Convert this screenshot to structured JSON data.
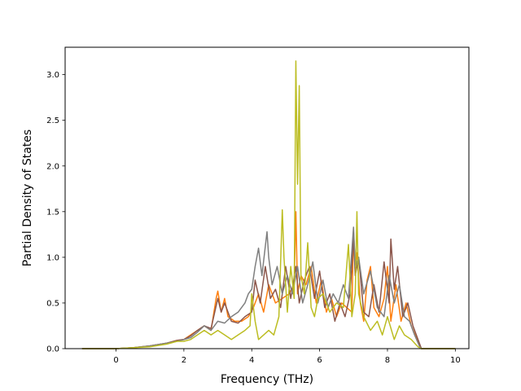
{
  "chart_data": {
    "type": "line",
    "title": "",
    "xlabel": "Frequency (THz)",
    "ylabel": "Partial Density of States",
    "xlim": [
      -1.5,
      10.4
    ],
    "ylim": [
      0.0,
      3.3
    ],
    "xticks": [
      0,
      2,
      4,
      6,
      8,
      10
    ],
    "yticks": [
      0.0,
      0.5,
      1.0,
      1.5,
      2.0,
      2.5,
      3.0
    ],
    "xtick_labels": [
      "0",
      "2",
      "4",
      "6",
      "8",
      "10"
    ],
    "ytick_labels": [
      "0.0",
      "0.5",
      "1.0",
      "1.5",
      "2.0",
      "2.5",
      "3.0"
    ],
    "grid": false,
    "legend": "none",
    "series": [
      {
        "color": "#ff7f0e",
        "x": [
          -1.0,
          0.0,
          0.5,
          1.0,
          1.5,
          1.8,
          2.0,
          2.2,
          2.4,
          2.6,
          2.8,
          2.95,
          3.0,
          3.1,
          3.2,
          3.3,
          3.5,
          3.7,
          3.9,
          4.05,
          4.2,
          4.35,
          4.5,
          4.7,
          4.9,
          5.1,
          5.25,
          5.3,
          5.35,
          5.45,
          5.6,
          5.75,
          5.9,
          6.05,
          6.2,
          6.35,
          6.5,
          6.65,
          6.8,
          6.95,
          7.0,
          7.05,
          7.1,
          7.2,
          7.3,
          7.4,
          7.5,
          7.6,
          7.75,
          7.9,
          8.0,
          8.1,
          8.25,
          8.4,
          8.55,
          8.7,
          8.85,
          9.0,
          9.2,
          10.0
        ],
        "y": [
          0.0,
          0.0,
          0.01,
          0.03,
          0.06,
          0.09,
          0.1,
          0.15,
          0.2,
          0.25,
          0.2,
          0.55,
          0.63,
          0.4,
          0.55,
          0.35,
          0.3,
          0.3,
          0.35,
          0.45,
          0.6,
          0.4,
          0.7,
          0.5,
          0.55,
          0.6,
          0.7,
          1.5,
          0.6,
          0.8,
          0.7,
          0.9,
          0.5,
          0.75,
          0.4,
          0.55,
          0.35,
          0.5,
          0.45,
          0.4,
          1.28,
          0.9,
          1.05,
          0.5,
          0.3,
          0.75,
          0.9,
          0.45,
          0.35,
          0.55,
          0.9,
          0.3,
          0.7,
          0.3,
          0.5,
          0.25,
          0.12,
          0.0,
          0.0,
          0.0
        ]
      },
      {
        "color": "#8c564b",
        "x": [
          -1.0,
          0.0,
          0.5,
          1.0,
          1.5,
          1.8,
          2.0,
          2.2,
          2.4,
          2.6,
          2.8,
          3.0,
          3.1,
          3.2,
          3.4,
          3.6,
          3.8,
          4.0,
          4.1,
          4.25,
          4.4,
          4.55,
          4.7,
          4.85,
          5.0,
          5.15,
          5.3,
          5.4,
          5.55,
          5.7,
          5.85,
          6.0,
          6.15,
          6.3,
          6.45,
          6.6,
          6.75,
          6.9,
          7.0,
          7.05,
          7.15,
          7.3,
          7.45,
          7.6,
          7.75,
          7.9,
          8.05,
          8.1,
          8.2,
          8.3,
          8.45,
          8.6,
          8.75,
          8.9,
          9.0,
          10.0
        ],
        "y": [
          0.0,
          0.0,
          0.01,
          0.03,
          0.06,
          0.09,
          0.1,
          0.14,
          0.2,
          0.25,
          0.22,
          0.55,
          0.4,
          0.5,
          0.3,
          0.28,
          0.35,
          0.4,
          0.75,
          0.5,
          0.9,
          0.55,
          0.65,
          0.45,
          0.9,
          0.55,
          0.9,
          0.5,
          0.75,
          0.9,
          0.55,
          0.85,
          0.45,
          0.6,
          0.3,
          0.5,
          0.35,
          0.6,
          1.22,
          0.8,
          1.0,
          0.4,
          0.35,
          0.7,
          0.4,
          0.95,
          0.5,
          1.2,
          0.65,
          0.9,
          0.35,
          0.5,
          0.25,
          0.1,
          0.0,
          0.0
        ]
      },
      {
        "color": "#7f7f7f",
        "x": [
          -1.0,
          0.0,
          0.5,
          1.0,
          1.5,
          1.8,
          2.0,
          2.2,
          2.4,
          2.6,
          2.8,
          3.0,
          3.2,
          3.4,
          3.6,
          3.8,
          3.9,
          4.0,
          4.1,
          4.2,
          4.3,
          4.45,
          4.5,
          4.6,
          4.75,
          4.9,
          5.05,
          5.2,
          5.35,
          5.5,
          5.65,
          5.8,
          5.95,
          6.1,
          6.25,
          6.4,
          6.55,
          6.7,
          6.85,
          7.0,
          7.05,
          7.15,
          7.3,
          7.5,
          7.7,
          7.9,
          8.05,
          8.2,
          8.35,
          8.5,
          8.65,
          8.8,
          8.95,
          9.0,
          10.0
        ],
        "y": [
          0.0,
          0.0,
          0.01,
          0.03,
          0.06,
          0.08,
          0.1,
          0.12,
          0.18,
          0.25,
          0.2,
          0.3,
          0.28,
          0.35,
          0.4,
          0.5,
          0.6,
          0.65,
          0.9,
          1.1,
          0.8,
          1.28,
          1.0,
          0.7,
          0.9,
          0.6,
          0.8,
          0.6,
          0.9,
          0.5,
          0.7,
          0.95,
          0.5,
          0.75,
          0.45,
          0.6,
          0.5,
          0.7,
          0.55,
          1.33,
          0.9,
          1.0,
          0.6,
          0.85,
          0.45,
          0.35,
          0.8,
          0.5,
          0.7,
          0.35,
          0.3,
          0.15,
          0.02,
          0.0,
          0.0
        ]
      },
      {
        "color": "#bcbd22",
        "x": [
          -1.0,
          0.0,
          0.5,
          1.0,
          1.5,
          1.8,
          2.0,
          2.2,
          2.4,
          2.6,
          2.8,
          3.0,
          3.2,
          3.4,
          3.6,
          3.8,
          3.95,
          4.0,
          4.1,
          4.2,
          4.35,
          4.5,
          4.65,
          4.8,
          4.9,
          4.95,
          5.05,
          5.15,
          5.25,
          5.3,
          5.35,
          5.4,
          5.45,
          5.55,
          5.65,
          5.75,
          5.85,
          5.95,
          6.1,
          6.3,
          6.5,
          6.7,
          6.85,
          6.95,
          7.05,
          7.1,
          7.15,
          7.3,
          7.5,
          7.7,
          7.85,
          8.0,
          8.2,
          8.35,
          8.5,
          8.7,
          8.9,
          9.0,
          10.0
        ],
        "y": [
          0.0,
          0.0,
          0.01,
          0.02,
          0.05,
          0.08,
          0.08,
          0.1,
          0.15,
          0.2,
          0.15,
          0.2,
          0.15,
          0.1,
          0.15,
          0.2,
          0.25,
          0.6,
          0.3,
          0.1,
          0.15,
          0.2,
          0.15,
          0.35,
          1.52,
          1.0,
          0.4,
          0.9,
          0.55,
          3.15,
          1.8,
          2.88,
          0.8,
          0.6,
          1.16,
          0.45,
          0.35,
          0.55,
          0.6,
          0.4,
          0.5,
          0.45,
          1.14,
          0.35,
          0.6,
          1.5,
          0.6,
          0.35,
          0.2,
          0.3,
          0.15,
          0.35,
          0.1,
          0.25,
          0.15,
          0.1,
          0.02,
          0.0,
          0.0
        ]
      }
    ]
  }
}
